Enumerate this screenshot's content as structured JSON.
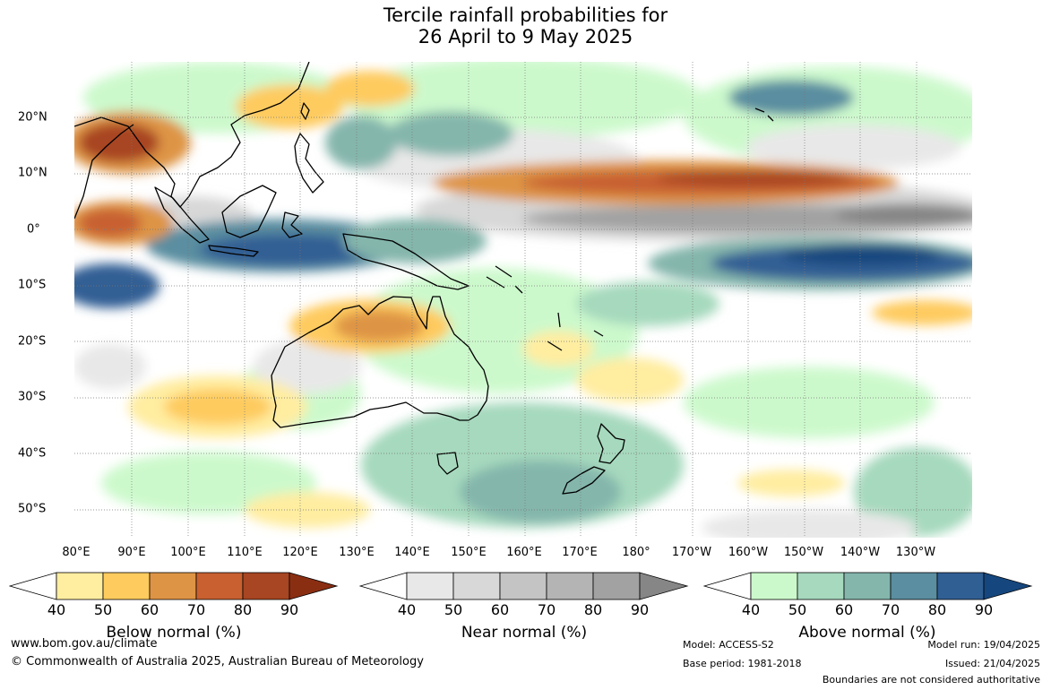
{
  "title": {
    "line1": "Tercile rainfall probabilities for",
    "line2": "26 April to 9 May 2025"
  },
  "map": {
    "region": "Indo-Pacific",
    "lon_labels": [
      "80°E",
      "90°E",
      "100°E",
      "110°E",
      "120°E",
      "130°E",
      "140°E",
      "150°E",
      "160°E",
      "170°E",
      "180°",
      "170°W",
      "160°W",
      "150°W",
      "140°W",
      "130°W"
    ],
    "lat_labels": [
      "20°N",
      "10°N",
      "0°",
      "10°S",
      "20°S",
      "30°S",
      "40°S",
      "50°S"
    ]
  },
  "colorbars": [
    {
      "label": "Below normal (%)",
      "ticks": [
        "40",
        "50",
        "60",
        "70",
        "80",
        "90"
      ],
      "colors": [
        "#ffffff",
        "#ffeda0",
        "#fecb5e",
        "#de9445",
        "#c86030",
        "#a84522",
        "#8a2e12"
      ]
    },
    {
      "label": "Near normal (%)",
      "ticks": [
        "40",
        "50",
        "60",
        "70",
        "80",
        "90"
      ],
      "colors": [
        "#ffffff",
        "#e8e8e8",
        "#d8d8d8",
        "#c4c4c4",
        "#b4b4b4",
        "#a2a2a2",
        "#868686"
      ]
    },
    {
      "label": "Above normal (%)",
      "ticks": [
        "40",
        "50",
        "60",
        "70",
        "80",
        "90"
      ],
      "colors": [
        "#ffffff",
        "#ccf9cc",
        "#a6d9bd",
        "#84b6ac",
        "#5a8ea0",
        "#305f94",
        "#15477e"
      ]
    }
  ],
  "footer": {
    "website": "www.bom.gov.au/climate",
    "copyright": "© Commonwealth of Australia 2025, Australian Bureau of Meteorology",
    "model": "Model: ACCESS-S2",
    "base_period": "Base period: 1981-2018",
    "model_run": "Model run: 19/04/2025",
    "issued": "Issued: 21/04/2025",
    "disclaimer": "Boundaries are not considered authoritative"
  }
}
